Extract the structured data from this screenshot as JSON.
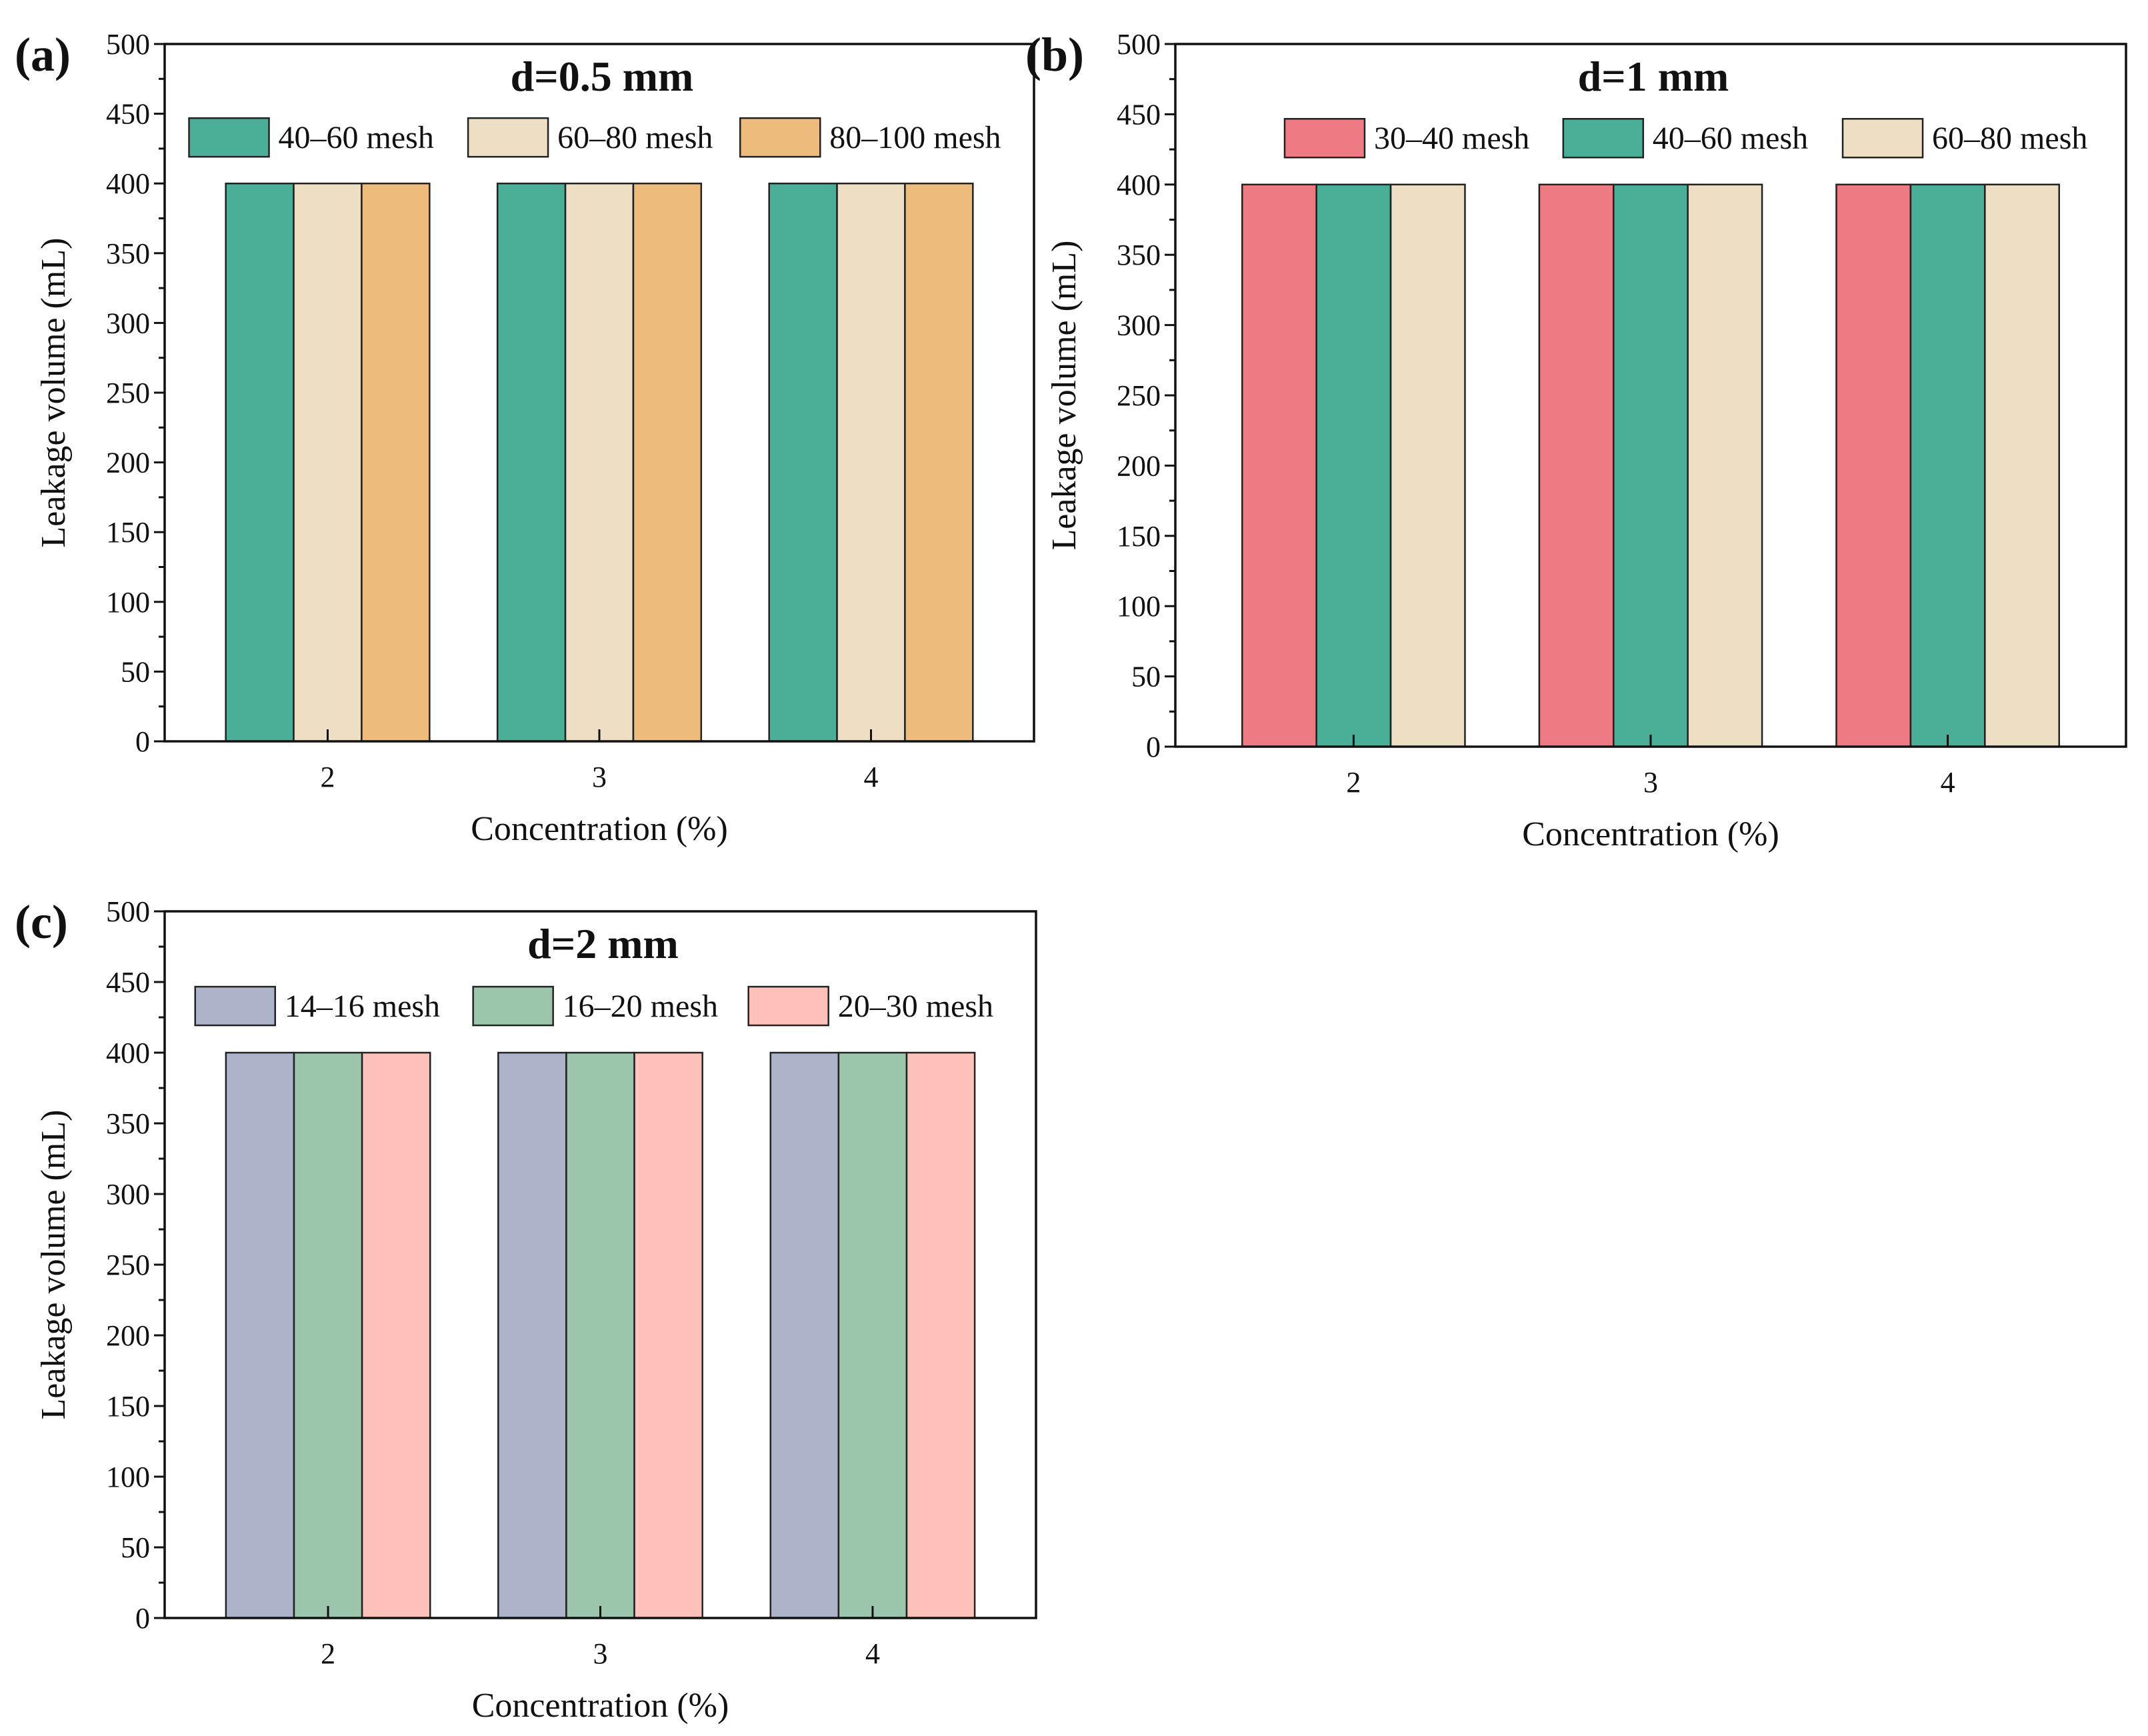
{
  "chart_data": [
    {
      "type": "bar",
      "panel_label": "(a)",
      "title": "d=0.5 mm",
      "xlabel": "Concentration (%)",
      "ylabel": "Leakage volume (mL)",
      "categories": [
        "2",
        "3",
        "4"
      ],
      "ylim": [
        0,
        500
      ],
      "yticks": [
        "0",
        "50",
        "100",
        "150",
        "200",
        "250",
        "300",
        "350",
        "400",
        "450",
        "500"
      ],
      "legend_placement": "top",
      "series": [
        {
          "name": "40–60 mesh",
          "color": "#4BAE96",
          "values": [
            400,
            400,
            400
          ]
        },
        {
          "name": "60–80 mesh",
          "color": "#EEDEC4",
          "values": [
            400,
            400,
            400
          ]
        },
        {
          "name": "80–100 mesh",
          "color": "#EDBC7D",
          "values": [
            400,
            400,
            400
          ]
        }
      ]
    },
    {
      "type": "bar",
      "panel_label": "(b)",
      "title": "d=1 mm",
      "xlabel": "Concentration (%)",
      "ylabel": "Leakage volume (mL)",
      "categories": [
        "2",
        "3",
        "4"
      ],
      "ylim": [
        0,
        500
      ],
      "yticks": [
        "0",
        "50",
        "100",
        "150",
        "200",
        "250",
        "300",
        "350",
        "400",
        "450",
        "500"
      ],
      "legend_placement": "top",
      "series": [
        {
          "name": "30–40 mesh",
          "color": "#EE7B83",
          "values": [
            400,
            400,
            400
          ]
        },
        {
          "name": "40–60 mesh",
          "color": "#4BAE96",
          "values": [
            400,
            400,
            400
          ]
        },
        {
          "name": "60–80 mesh",
          "color": "#EEDEC4",
          "values": [
            400,
            400,
            400
          ]
        }
      ]
    },
    {
      "type": "bar",
      "panel_label": "(c)",
      "title": "d=2 mm",
      "xlabel": "Concentration (%)",
      "ylabel": "Leakage volume (mL)",
      "categories": [
        "2",
        "3",
        "4"
      ],
      "ylim": [
        0,
        500
      ],
      "yticks": [
        "0",
        "50",
        "100",
        "150",
        "200",
        "250",
        "300",
        "350",
        "400",
        "450",
        "500"
      ],
      "legend_placement": "top",
      "series": [
        {
          "name": "14–16 mesh",
          "color": "#ADB3C8",
          "values": [
            400,
            400,
            400
          ]
        },
        {
          "name": "16–20 mesh",
          "color": "#9CC6AC",
          "values": [
            400,
            400,
            400
          ]
        },
        {
          "name": "20–30 mesh",
          "color": "#FDC1B9",
          "values": [
            400,
            400,
            400
          ]
        }
      ]
    }
  ]
}
